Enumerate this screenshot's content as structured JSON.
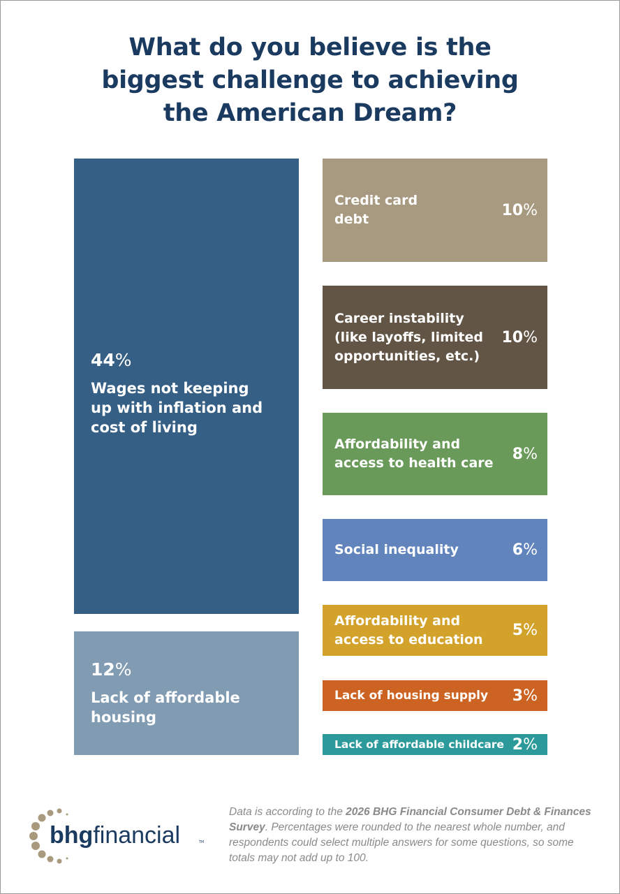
{
  "title": "What do you believe is the biggest challenge to achieving the American Dream?",
  "chart_data": {
    "type": "bar",
    "title": "What do you believe is the biggest challenge to achieving the American Dream?",
    "categories": [
      "Wages not keeping up with inflation and cost of living",
      "Lack of affordable housing",
      "Credit card debt",
      "Career instability (like layoffs, limited opportunities, etc.)",
      "Affordability and access to health care",
      "Social inequality",
      "Affordability and access to education",
      "Lack of housing supply",
      "Lack of affordable childcare"
    ],
    "values": [
      44,
      12,
      10,
      10,
      8,
      6,
      5,
      3,
      2
    ],
    "unit": "%",
    "colors": [
      "#365f85",
      "#819bb3",
      "#a89a80",
      "#625545",
      "#6a9a5a",
      "#6284bd",
      "#d3a22a",
      "#cd6322",
      "#2c9a9a"
    ]
  },
  "footer": {
    "logo_text": "bhgfinancial",
    "logo_bold": "bhg",
    "logo_light": "financial",
    "logo_tm": "TM",
    "note_pre": "Data is according to the ",
    "note_bold": "2026 BHG Financial Consumer Debt & Finances Survey",
    "note_post": ". Percentages were rounded to the nearest whole number, and respondents could select multiple answers for some questions, so some totals may not add up to 100."
  }
}
